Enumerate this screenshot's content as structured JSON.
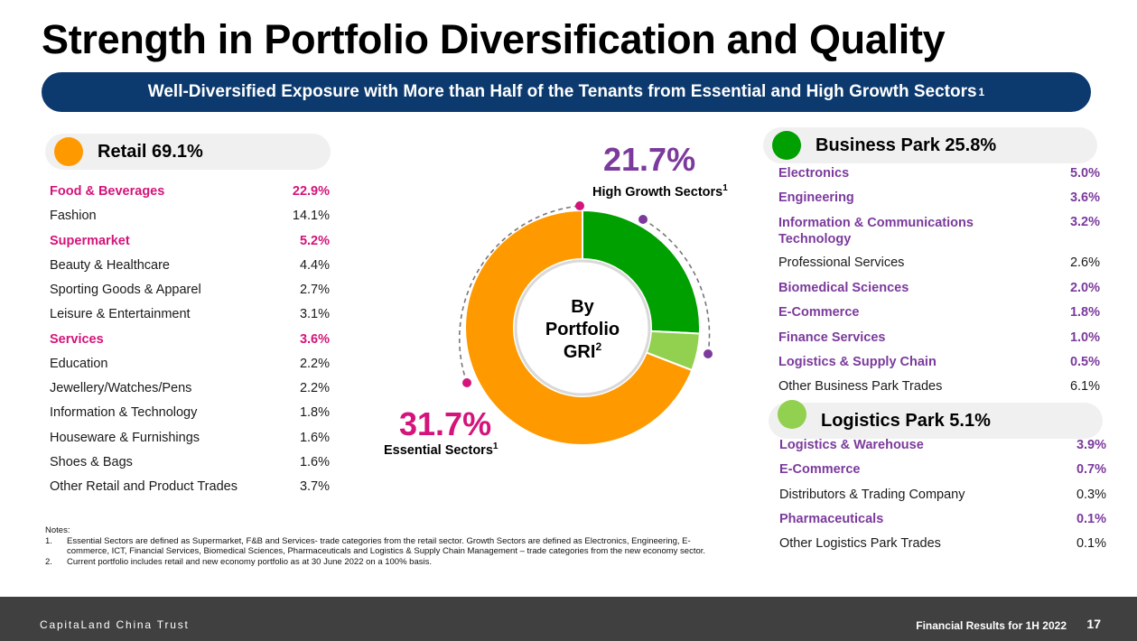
{
  "title": "Strength in Portfolio Diversification and Quality",
  "banner": {
    "text": "Well-Diversified Exposure with More than Half of the Tenants from Essential and High Growth Sectors",
    "sup": "1"
  },
  "colors": {
    "retail": "#ff9900",
    "business_park": "#00a000",
    "logistics_park": "#92d050",
    "essential_highlight": "#d4147a",
    "growth_highlight": "#7b3a9c",
    "banner": "#0c3a6e"
  },
  "retail": {
    "header": "Retail 69.1%",
    "items": [
      {
        "name": "Food & Beverages",
        "pct": "22.9%",
        "highlight": "pink"
      },
      {
        "name": "Fashion",
        "pct": "14.1%",
        "highlight": ""
      },
      {
        "name": "Supermarket",
        "pct": "5.2%",
        "highlight": "pink"
      },
      {
        "name": "Beauty & Healthcare",
        "pct": "4.4%",
        "highlight": ""
      },
      {
        "name": "Sporting Goods & Apparel",
        "pct": "2.7%",
        "highlight": ""
      },
      {
        "name": "Leisure & Entertainment",
        "pct": "3.1%",
        "highlight": ""
      },
      {
        "name": "Services",
        "pct": "3.6%",
        "highlight": "pink"
      },
      {
        "name": "Education",
        "pct": "2.2%",
        "highlight": ""
      },
      {
        "name": "Jewellery/Watches/Pens",
        "pct": "2.2%",
        "highlight": ""
      },
      {
        "name": "Information & Technology",
        "pct": "1.8%",
        "highlight": ""
      },
      {
        "name": "Houseware & Furnishings",
        "pct": "1.6%",
        "highlight": ""
      },
      {
        "name": "Shoes & Bags",
        "pct": "1.6%",
        "highlight": ""
      },
      {
        "name": "Other Retail and Product Trades",
        "pct": "3.7%",
        "highlight": ""
      }
    ]
  },
  "business_park": {
    "header": "Business Park 25.8%",
    "items": [
      {
        "name": "Electronics",
        "pct": "5.0%",
        "highlight": "purple"
      },
      {
        "name": "Engineering",
        "pct": "3.6%",
        "highlight": "purple"
      },
      {
        "name": "Information & Communications Technology",
        "pct": "3.2%",
        "highlight": "purple"
      },
      {
        "name": "Professional Services",
        "pct": "2.6%",
        "highlight": ""
      },
      {
        "name": "Biomedical Sciences",
        "pct": "2.0%",
        "highlight": "purple"
      },
      {
        "name": "E-Commerce",
        "pct": "1.8%",
        "highlight": "purple"
      },
      {
        "name": "Finance Services",
        "pct": "1.0%",
        "highlight": "purple"
      },
      {
        "name": "Logistics & Supply Chain",
        "pct": "0.5%",
        "highlight": "purple"
      },
      {
        "name": "Other Business Park Trades",
        "pct": "6.1%",
        "highlight": ""
      }
    ]
  },
  "logistics_park": {
    "header": "Logistics Park 5.1%",
    "items": [
      {
        "name": "Logistics & Warehouse",
        "pct": "3.9%",
        "highlight": "purple"
      },
      {
        "name": "E-Commerce",
        "pct": "0.7%",
        "highlight": "purple"
      },
      {
        "name": "Distributors & Trading Company",
        "pct": "0.3%",
        "highlight": ""
      },
      {
        "name": "Pharmaceuticals",
        "pct": "0.1%",
        "highlight": "purple"
      },
      {
        "name": "Other Logistics Park Trades",
        "pct": "0.1%",
        "highlight": ""
      }
    ]
  },
  "chart_data": {
    "type": "pie",
    "donut": true,
    "title": "By Portfolio GRI",
    "center_line1": "By",
    "center_line2": "Portfolio",
    "center_line3": "GRI",
    "center_sup": "2",
    "slices": [
      {
        "name": "Business Park",
        "value": 25.8,
        "color": "#00a000"
      },
      {
        "name": "Logistics Park",
        "value": 5.1,
        "color": "#92d050"
      },
      {
        "name": "Retail",
        "value": 69.1,
        "color": "#ff9900"
      }
    ],
    "annotations": {
      "growth_pct": "21.7%",
      "growth_label": "High Growth Sectors",
      "growth_sup": "1",
      "essential_pct": "31.7%",
      "essential_label": "Essential Sectors",
      "essential_sup": "1"
    }
  },
  "notes": {
    "heading": "Notes:",
    "items": [
      {
        "num": "1.",
        "text": "Essential Sectors are defined as Supermarket, F&B and Services- trade categories from the retail sector. Growth Sectors are defined as Electronics, Engineering, E-commerce, ICT, Financial Services, Biomedical Sciences, Pharmaceuticals and Logistics & Supply Chain Management – trade categories from the new economy sector."
      },
      {
        "num": "2.",
        "text": "Current portfolio includes retail and new economy portfolio as at 30 June 2022 on a 100% basis."
      }
    ]
  },
  "footer": {
    "company": "CapitaLand China Trust",
    "report": "Financial Results for 1H 2022",
    "page": "17"
  }
}
